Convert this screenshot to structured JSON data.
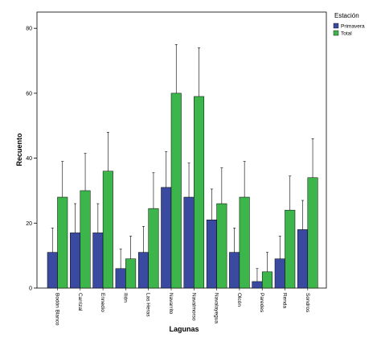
{
  "chart_data": {
    "type": "bar",
    "xlabel": "Lagunas",
    "ylabel": "Recuento",
    "ylim": [
      0,
      85
    ],
    "yticks": [
      0,
      20,
      40,
      60,
      80
    ],
    "grid": false,
    "error_bars": true,
    "legend_title": "Estación",
    "legend_position": "top-right",
    "categories": [
      "Bodón Blanco",
      "Carrizal",
      "Ennedio",
      "Ilión",
      "Las Heras",
      "Navarrito",
      "Navalmorso",
      "Navalayegua",
      "Olcón",
      "Paredes",
      "Renda",
      "Sondros"
    ],
    "series": [
      {
        "name": "Primavera",
        "color": "#3a4aa0",
        "values": [
          11,
          17,
          17,
          6,
          11,
          31,
          28,
          21,
          11,
          2,
          9,
          18
        ],
        "error_upper": [
          18.5,
          26,
          26,
          12,
          19,
          42,
          38.5,
          30.5,
          18.5,
          6,
          16,
          27
        ]
      },
      {
        "name": "Total",
        "color": "#3cb54a",
        "values": [
          28,
          30,
          36,
          9,
          24.5,
          60,
          59,
          26,
          28,
          5,
          24,
          34
        ],
        "error_upper": [
          39,
          41.5,
          48,
          16,
          35.5,
          75,
          74,
          37,
          39,
          11,
          34.5,
          46
        ]
      }
    ]
  }
}
